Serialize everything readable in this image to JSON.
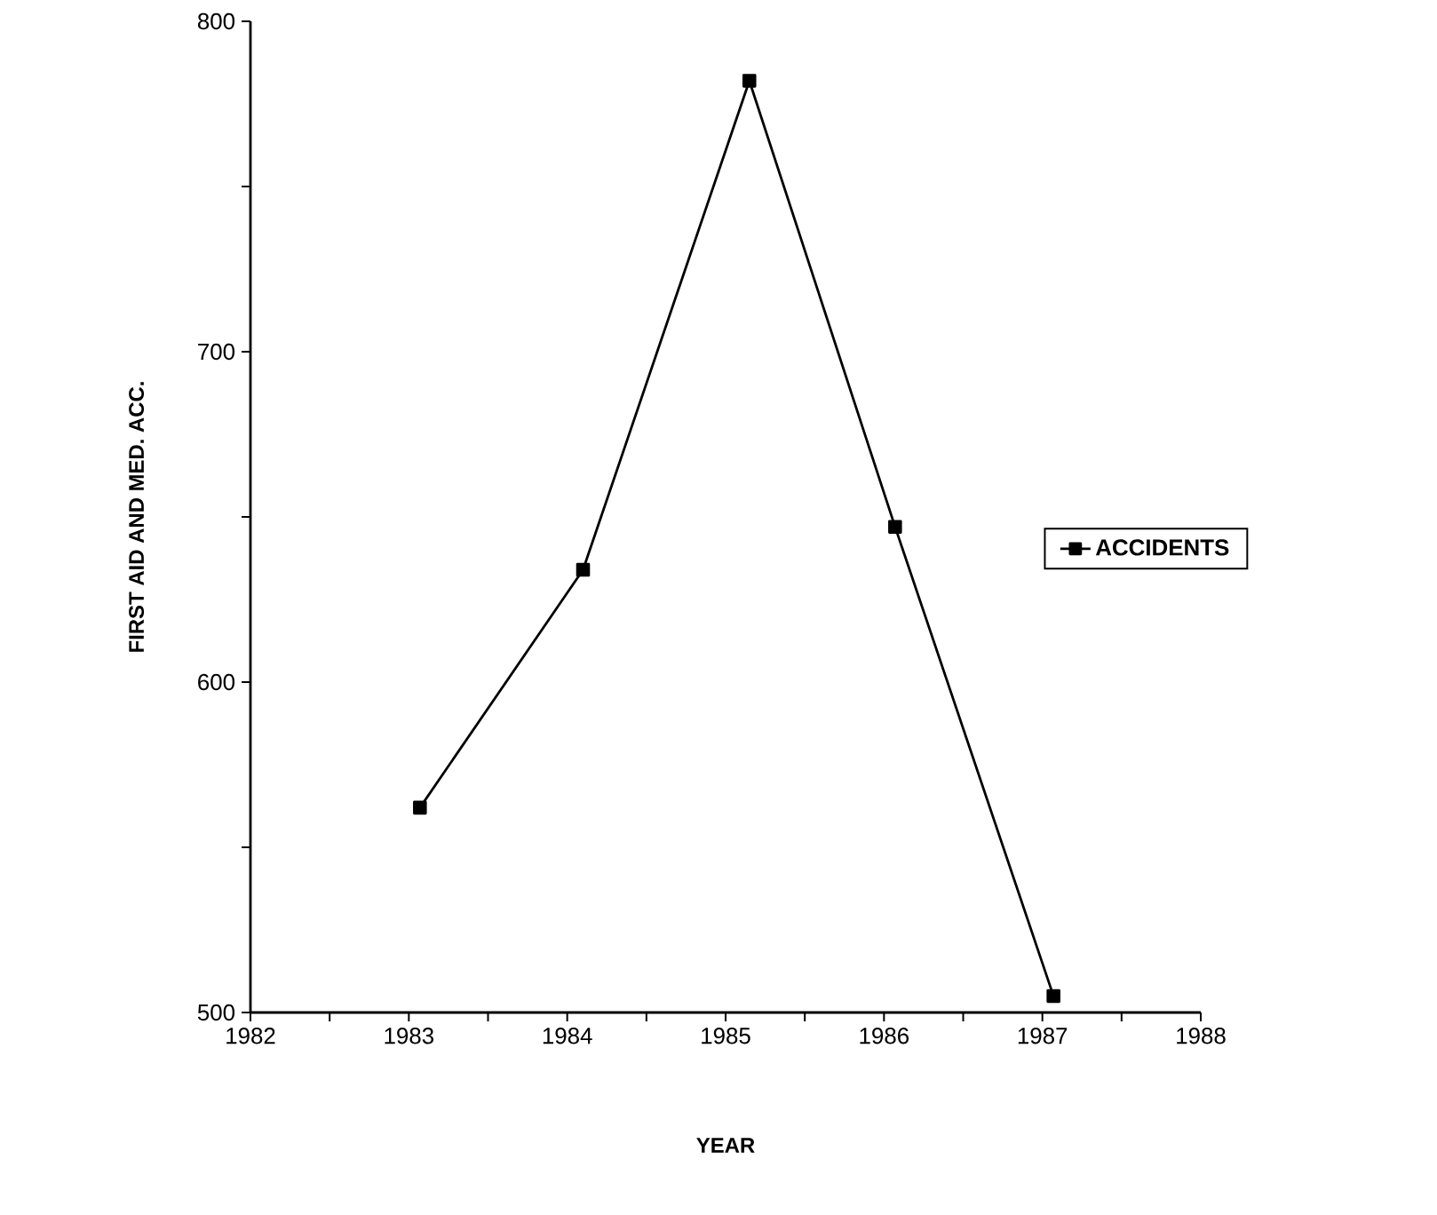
{
  "chart_data": {
    "type": "line",
    "xlabel": "YEAR",
    "ylabel": "FIRST AID AND MED. ACC.",
    "x": [
      1983.07,
      1984.1,
      1985.15,
      1986.07,
      1987.07
    ],
    "series": [
      {
        "name": "ACCIDENTS",
        "color": "#000000",
        "values": [
          562,
          634,
          782,
          647,
          505
        ]
      }
    ],
    "xlim": [
      1982,
      1988
    ],
    "xticks": [
      1982,
      {
        "value": 1982.5,
        "label": null
      },
      1983,
      {
        "value": 1983.5,
        "label": null
      },
      1984,
      {
        "value": 1984.5,
        "label": null
      },
      1985,
      {
        "value": 1985.5,
        "label": null
      },
      1986,
      {
        "value": 1986.5,
        "label": null
      },
      1987,
      {
        "value": 1987.5,
        "label": null
      },
      1988
    ],
    "ylim": [
      500,
      800
    ],
    "yticks": [
      500,
      {
        "value": 550,
        "label": null
      },
      600,
      {
        "value": 650,
        "label": null
      },
      700,
      {
        "value": 750,
        "label": null
      },
      800
    ],
    "grid": false,
    "legend": "right",
    "marker": "square",
    "line_style": "solid"
  }
}
